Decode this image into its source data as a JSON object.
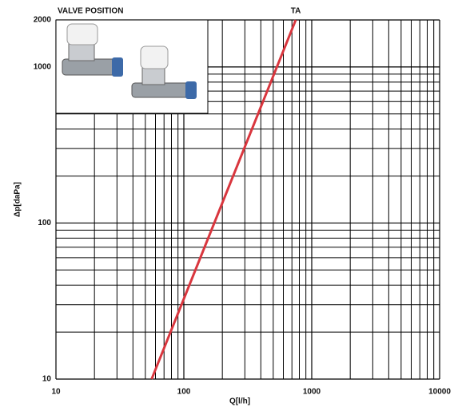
{
  "chart_data": {
    "type": "line",
    "annotations": [
      "VALVE POSITION"
    ],
    "x_label": "Q[l/h]",
    "y_label": "Δp[daPa]",
    "log_scale": true,
    "grid": true,
    "xlim": [
      10,
      10000
    ],
    "ylim": [
      10,
      2000
    ],
    "xticks": [
      10,
      100,
      1000,
      10000
    ],
    "yticks": [
      10,
      100,
      1000,
      2000
    ],
    "xminorticks": [
      20,
      30,
      40,
      50,
      60,
      70,
      80,
      90,
      200,
      300,
      400,
      500,
      600,
      700,
      800,
      900,
      2000,
      3000,
      4000,
      5000,
      6000,
      7000,
      8000,
      9000
    ],
    "yminorticks": [
      20,
      30,
      40,
      50,
      60,
      70,
      80,
      90,
      200,
      300,
      400,
      500,
      600,
      700,
      800,
      900
    ],
    "series": [
      {
        "name": "TA",
        "color": "#d9363e",
        "x": [
          56,
          750
        ],
        "values": [
          10,
          2000
        ]
      }
    ]
  }
}
